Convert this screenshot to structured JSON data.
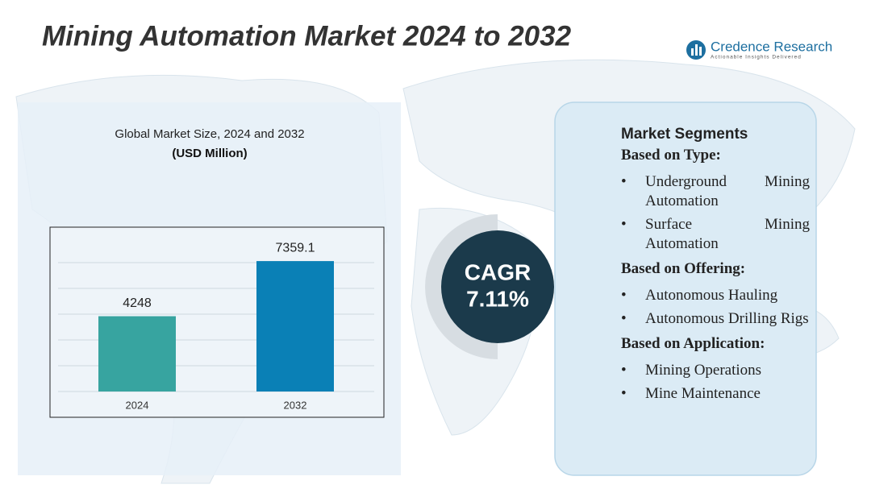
{
  "header": {
    "title": "Mining Automation Market 2024 to 2032",
    "logo_name": "Credence Research",
    "logo_tagline": "Actionable Insights Delivered"
  },
  "chart_data": {
    "type": "bar",
    "title": "Global Market Size,  2024 and 2032",
    "subtitle": "(USD Million)",
    "categories": [
      "2024",
      "2032"
    ],
    "values": [
      4248,
      7359.1
    ],
    "colors": [
      "#37a4a0",
      "#0a80b6"
    ],
    "ylim": [
      0,
      8000
    ]
  },
  "cagr": {
    "label": "CAGR",
    "value": "7.11%"
  },
  "segments": {
    "title": "Market Segments",
    "groups": [
      {
        "heading": "Based on Type:",
        "items": [
          "Underground Mining Automation",
          "Surface Mining Automation"
        ]
      },
      {
        "heading": "Based on Offering:",
        "items": [
          "Autonomous Hauling",
          "Autonomous Drilling Rigs"
        ]
      },
      {
        "heading": "Based on Application:",
        "items": [
          "Mining Operations",
          "Mine Maintenance"
        ]
      }
    ]
  }
}
